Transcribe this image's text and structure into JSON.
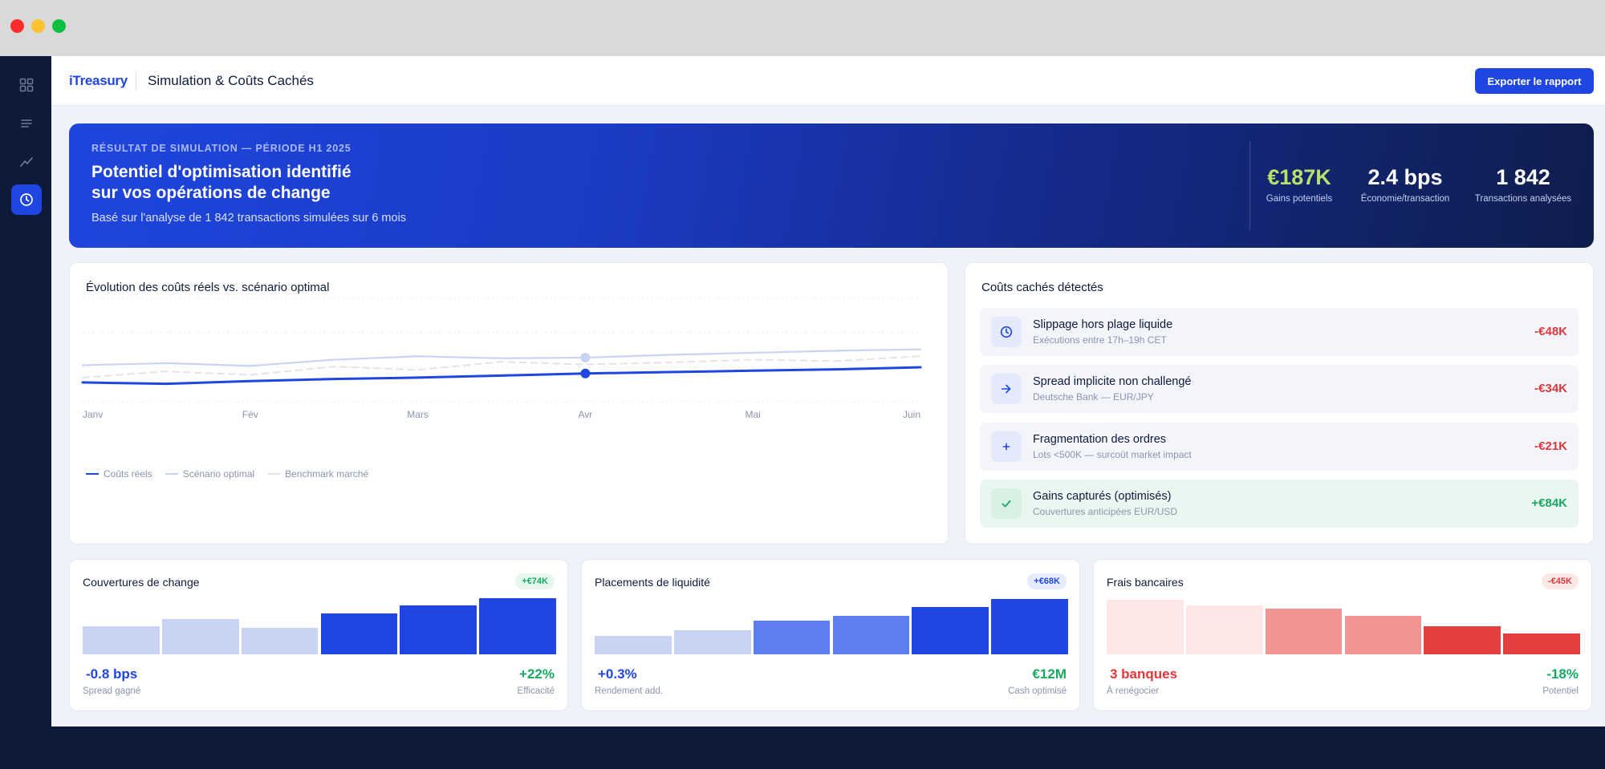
{
  "window": {
    "controls": [
      "close",
      "minimize",
      "maximize"
    ]
  },
  "sidebar": {
    "items": [
      {
        "icon": "grid-icon",
        "active": false
      },
      {
        "icon": "list-icon",
        "active": false
      },
      {
        "icon": "trend-icon",
        "active": false
      },
      {
        "icon": "clock-icon",
        "active": true
      }
    ]
  },
  "header": {
    "brand": "iTreasury",
    "title": "Simulation & Coûts Cachés",
    "export_label": "Exporter le rapport"
  },
  "hero": {
    "kicker": "RÉSULTAT DE SIMULATION — PÉRIODE H1 2025",
    "title_line1": "Potentiel d'optimisation identifié",
    "title_line2": "sur vos opérations de change",
    "subtitle": "Basé sur l'analyse de 1 842 transactions simulées sur 6 mois",
    "stats": [
      {
        "value": "€187K",
        "label": "Gains potentiels",
        "accent": "#b9e06a"
      },
      {
        "value": "2.4 bps",
        "label": "Économie/transaction"
      },
      {
        "value": "1 842",
        "label": "Transactions analysées"
      }
    ]
  },
  "evolution": {
    "title": "Évolution des coûts réels vs. scénario optimal",
    "chart_data": {
      "type": "line",
      "categories": [
        "Janv",
        "Fév",
        "Mars",
        "Avr",
        "Mai",
        "Juin"
      ],
      "x": [
        0,
        0.5,
        1,
        1.5,
        2,
        2.5,
        3,
        3.5,
        4,
        4.5,
        5
      ],
      "series": [
        {
          "name": "Coûts réels",
          "color": "#1f46e0",
          "style": "solid-bold",
          "values": [
            28,
            26,
            30,
            33,
            35,
            38,
            41,
            43,
            45,
            47,
            50
          ]
        },
        {
          "name": "Scénario optimal",
          "color": "#c9d4f5",
          "style": "solid",
          "values": [
            53,
            56,
            52,
            61,
            66,
            63,
            64,
            68,
            71,
            74,
            76
          ]
        },
        {
          "name": "Benchmark marché",
          "color": "#e1e4ea",
          "style": "dashed",
          "values": [
            35,
            44,
            39,
            51,
            46,
            58,
            54,
            57,
            61,
            59,
            66
          ]
        }
      ],
      "ylim": [
        0,
        150
      ],
      "grid": true,
      "legend": "bottom-left",
      "highlight_index": 6
    }
  },
  "hidden_costs": {
    "title": "Coûts cachés détectés",
    "items": [
      {
        "icon": "clock-icon",
        "name": "Slippage hors plage liquide",
        "desc": "Exécutions entre 17h–19h CET",
        "value": "-€48K",
        "positive": false
      },
      {
        "icon": "arrow-right-icon",
        "name": "Spread implicite non challengé",
        "desc": "Deutsche Bank — EUR/JPY",
        "value": "-€34K",
        "positive": false
      },
      {
        "icon": "plus-icon",
        "name": "Fragmentation des ordres",
        "desc": "Lots <500K — surcoût market impact",
        "value": "-€21K",
        "positive": false
      },
      {
        "icon": "check-icon",
        "name": "Gains capturés (optimisés)",
        "desc": "Couvertures anticipées EUR/USD",
        "value": "+€84K",
        "positive": true
      }
    ]
  },
  "kpis": [
    {
      "title": "Couvertures de change",
      "badge": "+€74K",
      "badge_type": "green",
      "left_value": "-0.8 bps",
      "left_label": "Spread gagné",
      "left_color": "#1f46e0",
      "right_value": "+22%",
      "right_label": "Efficacité",
      "bar_levels": [
        0.5,
        0.63,
        0.47,
        0.73,
        0.87,
        1.0
      ],
      "bar_colors": [
        "#c9d4f5",
        "#c9d4f5",
        "#c9d4f5",
        "#1f46e0",
        "#1f46e0",
        "#1f46e0"
      ]
    },
    {
      "title": "Placements de liquidité",
      "badge": "+€68K",
      "badge_type": "blue",
      "left_value": "+0.3%",
      "left_label": "Rendement add.",
      "left_color": "#1f46e0",
      "right_value": "€12M",
      "right_label": "Cash optimisé",
      "bar_levels": [
        0.33,
        0.43,
        0.6,
        0.69,
        0.85,
        0.99
      ],
      "bar_colors": [
        "#c9d4f5",
        "#c9d4f5",
        "#5d7ff0",
        "#5d7ff0",
        "#1f46e0",
        "#1f46e0"
      ]
    },
    {
      "title": "Frais bancaires",
      "badge": "-€45K",
      "badge_type": "red",
      "left_value": "3 banques",
      "left_label": "À renégocier",
      "left_color": "#e0383b",
      "right_value": "-18%",
      "right_label": "Potentiel",
      "bar_levels": [
        0.97,
        0.87,
        0.82,
        0.69,
        0.5,
        0.37
      ],
      "bar_colors": [
        "#fde6e6",
        "#fde6e6",
        "#f09393",
        "#f09393",
        "#e53e3e",
        "#e53e3e"
      ]
    }
  ]
}
